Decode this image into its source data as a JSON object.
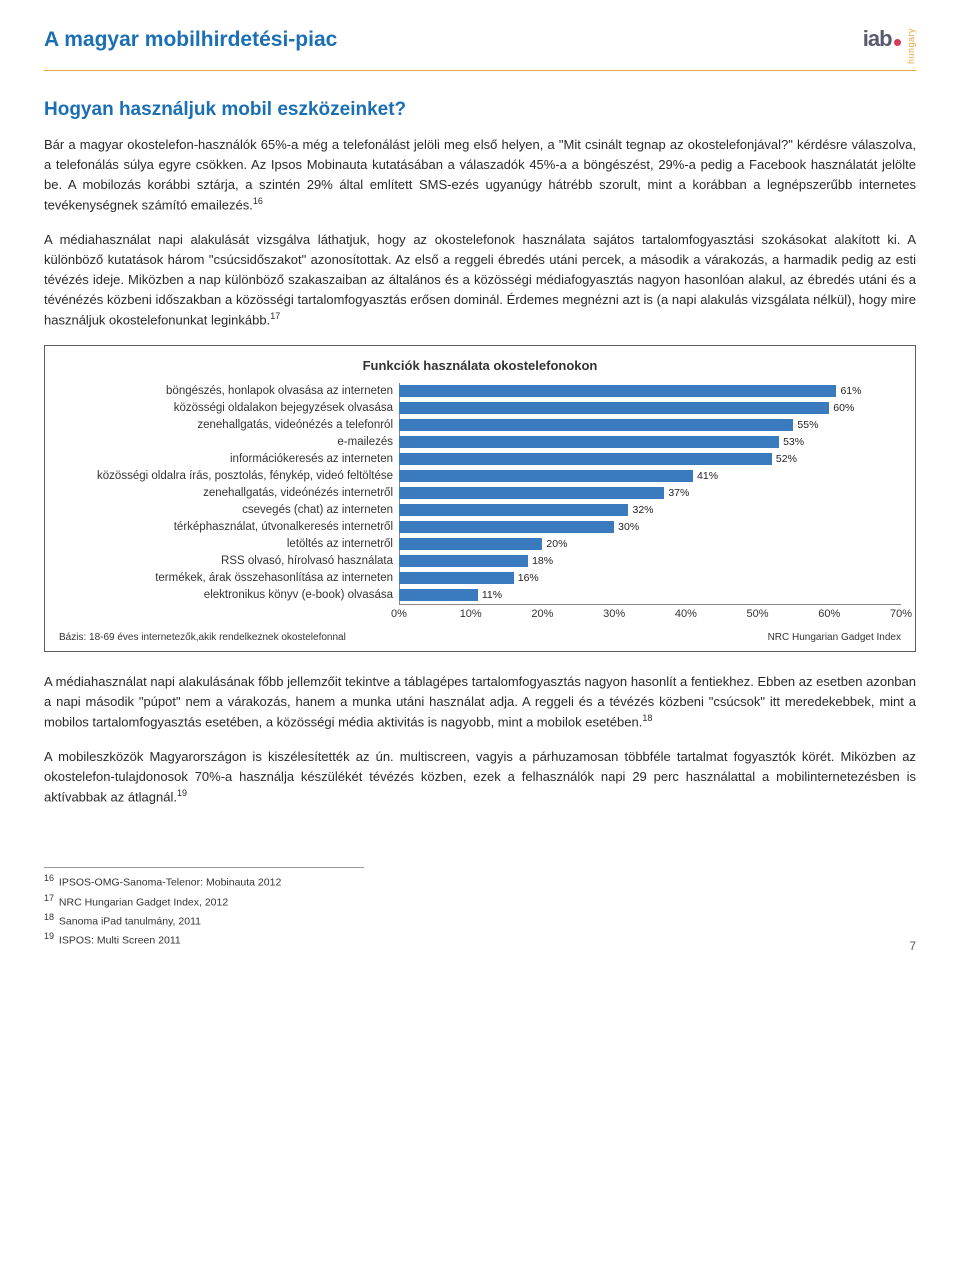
{
  "header": {
    "page_title": "A magyar mobilhirdetési-piac",
    "brand_sub": "hungary",
    "brand_main": "iab"
  },
  "section_title": "Hogyan használjuk mobil eszközeinket?",
  "para1": "Bár a magyar okostelefon-használók 65%-a még a telefonálást jelöli meg első helyen, a \"Mit csinált tegnap az okostelefonjával?\" kérdésre válaszolva, a telefonálás súlya egyre csökken. Az Ipsos Mobinauta kutatásában a válaszadók 45%-a a böngészést, 29%-a pedig a Facebook használatát jelölte be. A mobilozás korábbi sztárja, a szintén 29% által említett SMS-ezés ugyanúgy hátrébb szorult, mint a korábban a legnépszerűbb internetes tevékenységnek számító emailezés.",
  "para1_ref": "16",
  "para2": "A médiahasználat napi alakulását vizsgálva láthatjuk, hogy az okostelefonok használata sajátos tartalomfogyasztási szokásokat alakított ki. A különböző kutatások három \"csúcsidőszakot\" azonosítottak. Az első a reggeli ébredés utáni percek, a második a várakozás, a harmadik pedig az esti tévézés ideje. Miközben a nap különböző szakaszaiban az általános és a közösségi médiafogyasztás nagyon hasonlóan alakul, az ébredés utáni és a tévénézés közbeni időszakban a közösségi tartalomfogyasztás erősen dominál. Érdemes megnézni azt is (a napi alakulás vizsgálata nélkül), hogy mire használjuk okostelefonunkat leginkább.",
  "para2_ref": "17",
  "chart": {
    "title": "Funkciók használata okostelefonokon",
    "bar_color": "#3a7bbf",
    "x_max": 70,
    "x_ticks": [
      "0%",
      "10%",
      "20%",
      "30%",
      "40%",
      "50%",
      "60%",
      "70%"
    ],
    "rows": [
      {
        "label": "böngészés, honlapok olvasása az interneten",
        "value": 61,
        "display": "61%"
      },
      {
        "label": "közösségi oldalakon bejegyzések olvasása",
        "value": 60,
        "display": "60%"
      },
      {
        "label": "zenehallgatás, videónézés a telefonról",
        "value": 55,
        "display": "55%"
      },
      {
        "label": "e-mailezés",
        "value": 53,
        "display": "53%"
      },
      {
        "label": "információkeresés az interneten",
        "value": 52,
        "display": "52%"
      },
      {
        "label": "közösségi oldalra írás, posztolás, fénykép, videó feltöltése",
        "value": 41,
        "display": "41%"
      },
      {
        "label": "zenehallgatás, videónézés internetről",
        "value": 37,
        "display": "37%"
      },
      {
        "label": "csevegés (chat) az interneten",
        "value": 32,
        "display": "32%"
      },
      {
        "label": "térképhasználat, útvonalkeresés internetről",
        "value": 30,
        "display": "30%"
      },
      {
        "label": "letöltés az internetről",
        "value": 20,
        "display": "20%"
      },
      {
        "label": "RSS olvasó, hírolvasó használata",
        "value": 18,
        "display": "18%"
      },
      {
        "label": "termékek, árak összehasonlítása az interneten",
        "value": 16,
        "display": "16%"
      },
      {
        "label": "elektronikus könyv (e-book) olvasása",
        "value": 11,
        "display": "11%"
      }
    ],
    "footer_left": "Bázis: 18-69 éves internetezők,akik rendelkeznek okostelefonnal",
    "footer_right": "NRC Hungarian Gadget Index"
  },
  "para3": "A médiahasználat napi alakulásának főbb jellemzőit tekintve a táblagépes tartalomfogyasztás nagyon hasonlít a fentiekhez. Ebben az esetben azonban a napi második \"púpot\" nem a várakozás, hanem a munka utáni használat adja. A reggeli és a tévézés közbeni \"csúcsok\" itt meredekebbek, mint a mobilos tartalomfogyasztás esetében, a közösségi média aktivitás is nagyobb, mint a mobilok esetében.",
  "para3_ref": "18",
  "para4": "A mobileszközök Magyarországon is kiszélesítették az ún. multiscreen, vagyis a párhuzamosan többféle tartalmat fogyasztók körét. Miközben az okostelefon-tulajdonosok 70%-a használja készülékét tévézés közben, ezek a felhasználók napi 29 perc használattal a mobilinternetezésben is aktívabbak az átlagnál.",
  "para4_ref": "19",
  "footnotes": [
    {
      "num": "16",
      "text": "IPSOS-OMG-Sanoma-Telenor: Mobinauta 2012"
    },
    {
      "num": "17",
      "text": "NRC Hungarian Gadget Index, 2012"
    },
    {
      "num": "18",
      "text": "Sanoma iPad tanulmány, 2011"
    },
    {
      "num": "19",
      "text": "ISPOS: Multi Screen 2011"
    }
  ],
  "page_number": "7"
}
